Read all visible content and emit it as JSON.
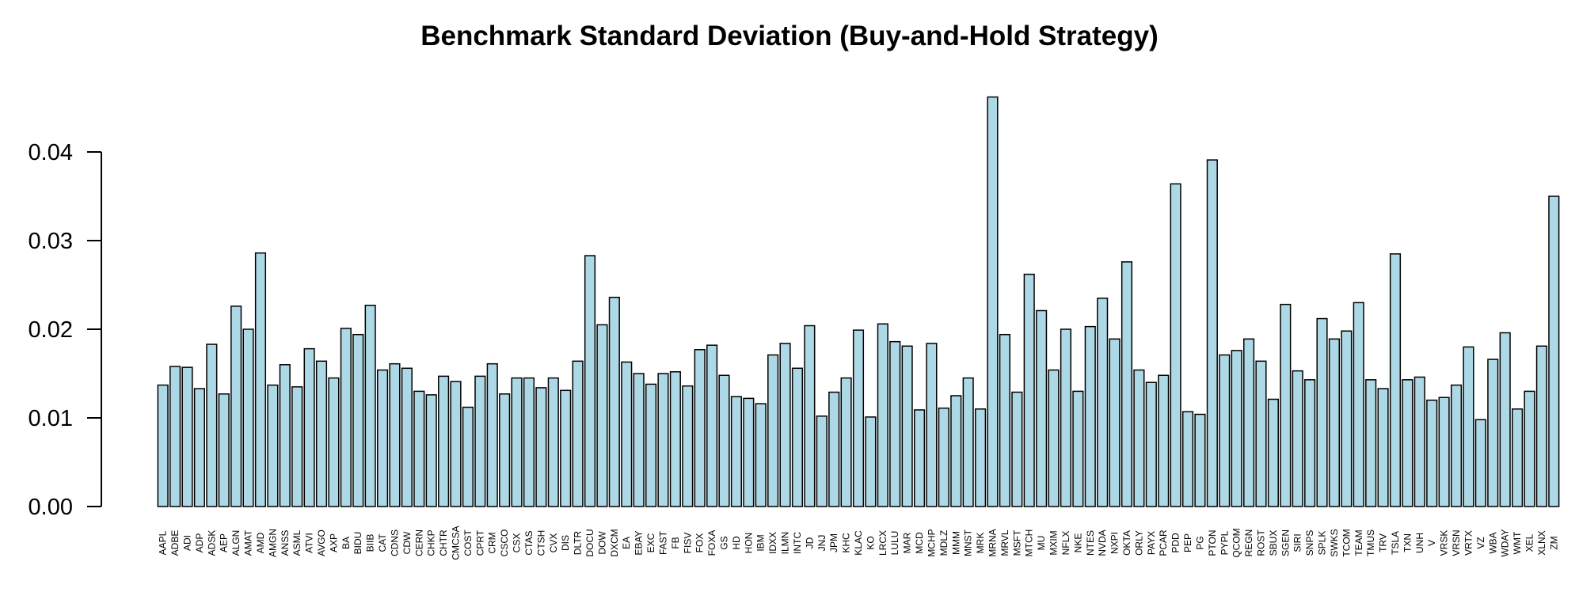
{
  "chart_data": {
    "type": "bar",
    "title": "Benchmark Standard Deviation (Buy-and-Hold Strategy)",
    "xlabel": "",
    "ylabel": "",
    "ylim": [
      0,
      0.046
    ],
    "yticks": [
      "0.00",
      "0.01",
      "0.02",
      "0.03",
      "0.04"
    ],
    "grid": false,
    "bar_color": "#ADD8E6",
    "bar_border_color": "#000000",
    "categories": [
      "AAPL",
      "ADBE",
      "ADI",
      "ADP",
      "ADSK",
      "AEP",
      "ALGN",
      "AMAT",
      "AMD",
      "AMGN",
      "ANSS",
      "ASML",
      "ATVI",
      "AVGO",
      "AXP",
      "BA",
      "BIDU",
      "BIIB",
      "CAT",
      "CDNS",
      "CDW",
      "CERN",
      "CHKP",
      "CHTR",
      "CMCSA",
      "COST",
      "CPRT",
      "CRM",
      "CSCO",
      "CSX",
      "CTAS",
      "CTSH",
      "CVX",
      "DIS",
      "DLTR",
      "DOCU",
      "DOW",
      "DXCM",
      "EA",
      "EBAY",
      "EXC",
      "FAST",
      "FB",
      "FISV",
      "FOX",
      "FOXA",
      "GS",
      "HD",
      "HON",
      "IBM",
      "IDXX",
      "ILMN",
      "INTC",
      "JD",
      "JNJ",
      "JPM",
      "KHC",
      "KLAC",
      "KO",
      "LRCX",
      "LULU",
      "MAR",
      "MCD",
      "MCHP",
      "MDLZ",
      "MMM",
      "MNST",
      "MRK",
      "MRNA",
      "MRVL",
      "MSFT",
      "MTCH",
      "MU",
      "MXIM",
      "NFLX",
      "NKE",
      "NTES",
      "NVDA",
      "NXPI",
      "OKTA",
      "ORLY",
      "PAYX",
      "PCAR",
      "PDD",
      "PEP",
      "PG",
      "PTON",
      "PYPL",
      "QCOM",
      "REGN",
      "ROST",
      "SBUX",
      "SGEN",
      "SIRI",
      "SNPS",
      "SPLK",
      "SWKS",
      "TCOM",
      "TEAM",
      "TMUS",
      "TRV",
      "TSLA",
      "TXN",
      "UNH",
      "V",
      "VRSK",
      "VRSN",
      "VRTX",
      "VZ",
      "WBA",
      "WDAY",
      "WMT",
      "XEL",
      "XLNX",
      "ZM"
    ],
    "values": [
      0.0137,
      0.0158,
      0.0157,
      0.0133,
      0.0183,
      0.0127,
      0.0226,
      0.02,
      0.0286,
      0.0137,
      0.016,
      0.0135,
      0.0178,
      0.0164,
      0.0145,
      0.0201,
      0.0194,
      0.0227,
      0.0154,
      0.0161,
      0.0156,
      0.013,
      0.0126,
      0.0147,
      0.0141,
      0.0112,
      0.0147,
      0.0161,
      0.0127,
      0.0145,
      0.0145,
      0.0134,
      0.0145,
      0.0131,
      0.0164,
      0.0283,
      0.0205,
      0.0236,
      0.0163,
      0.015,
      0.0138,
      0.015,
      0.0152,
      0.0136,
      0.0177,
      0.0182,
      0.0148,
      0.0124,
      0.0122,
      0.0116,
      0.0171,
      0.0184,
      0.0156,
      0.0204,
      0.0102,
      0.0129,
      0.0145,
      0.0199,
      0.0101,
      0.0206,
      0.0186,
      0.0181,
      0.0109,
      0.0184,
      0.0111,
      0.0125,
      0.0145,
      0.011,
      0.0462,
      0.0194,
      0.0129,
      0.0262,
      0.0221,
      0.0154,
      0.02,
      0.013,
      0.0203,
      0.0235,
      0.0189,
      0.0276,
      0.0154,
      0.014,
      0.0148,
      0.0364,
      0.0107,
      0.0104,
      0.0391,
      0.0171,
      0.0176,
      0.0189,
      0.0164,
      0.0121,
      0.0228,
      0.0153,
      0.0143,
      0.0212,
      0.0189,
      0.0198,
      0.023,
      0.0143,
      0.0133,
      0.0285,
      0.0143,
      0.0146,
      0.012,
      0.0123,
      0.0137,
      0.018,
      0.0098,
      0.0166,
      0.0196,
      0.011,
      0.013,
      0.0181,
      0.035
    ]
  }
}
